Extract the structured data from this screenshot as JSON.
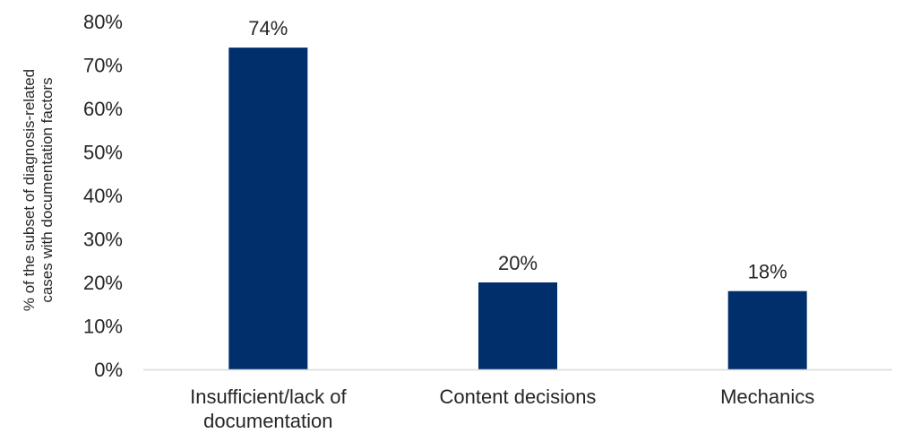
{
  "chart_data": {
    "type": "bar",
    "categories": [
      [
        "Insufficient/lack of",
        "documentation"
      ],
      [
        "Content decisions"
      ],
      [
        "Mechanics"
      ]
    ],
    "values": [
      74,
      20,
      18
    ],
    "data_labels": [
      "74%",
      "20%",
      "18%"
    ],
    "ylabel": [
      "% of the subset of diagnosis-related",
      "cases with documentation factors"
    ],
    "ylim": [
      0,
      80
    ],
    "yticks": [
      0,
      10,
      20,
      30,
      40,
      50,
      60,
      70,
      80
    ],
    "ytick_labels": [
      "0%",
      "10%",
      "20%",
      "30%",
      "40%",
      "50%",
      "60%",
      "70%",
      "80%"
    ],
    "grid": false,
    "bar_color": "#002F6C",
    "axis_color": "#D9D9D9"
  }
}
